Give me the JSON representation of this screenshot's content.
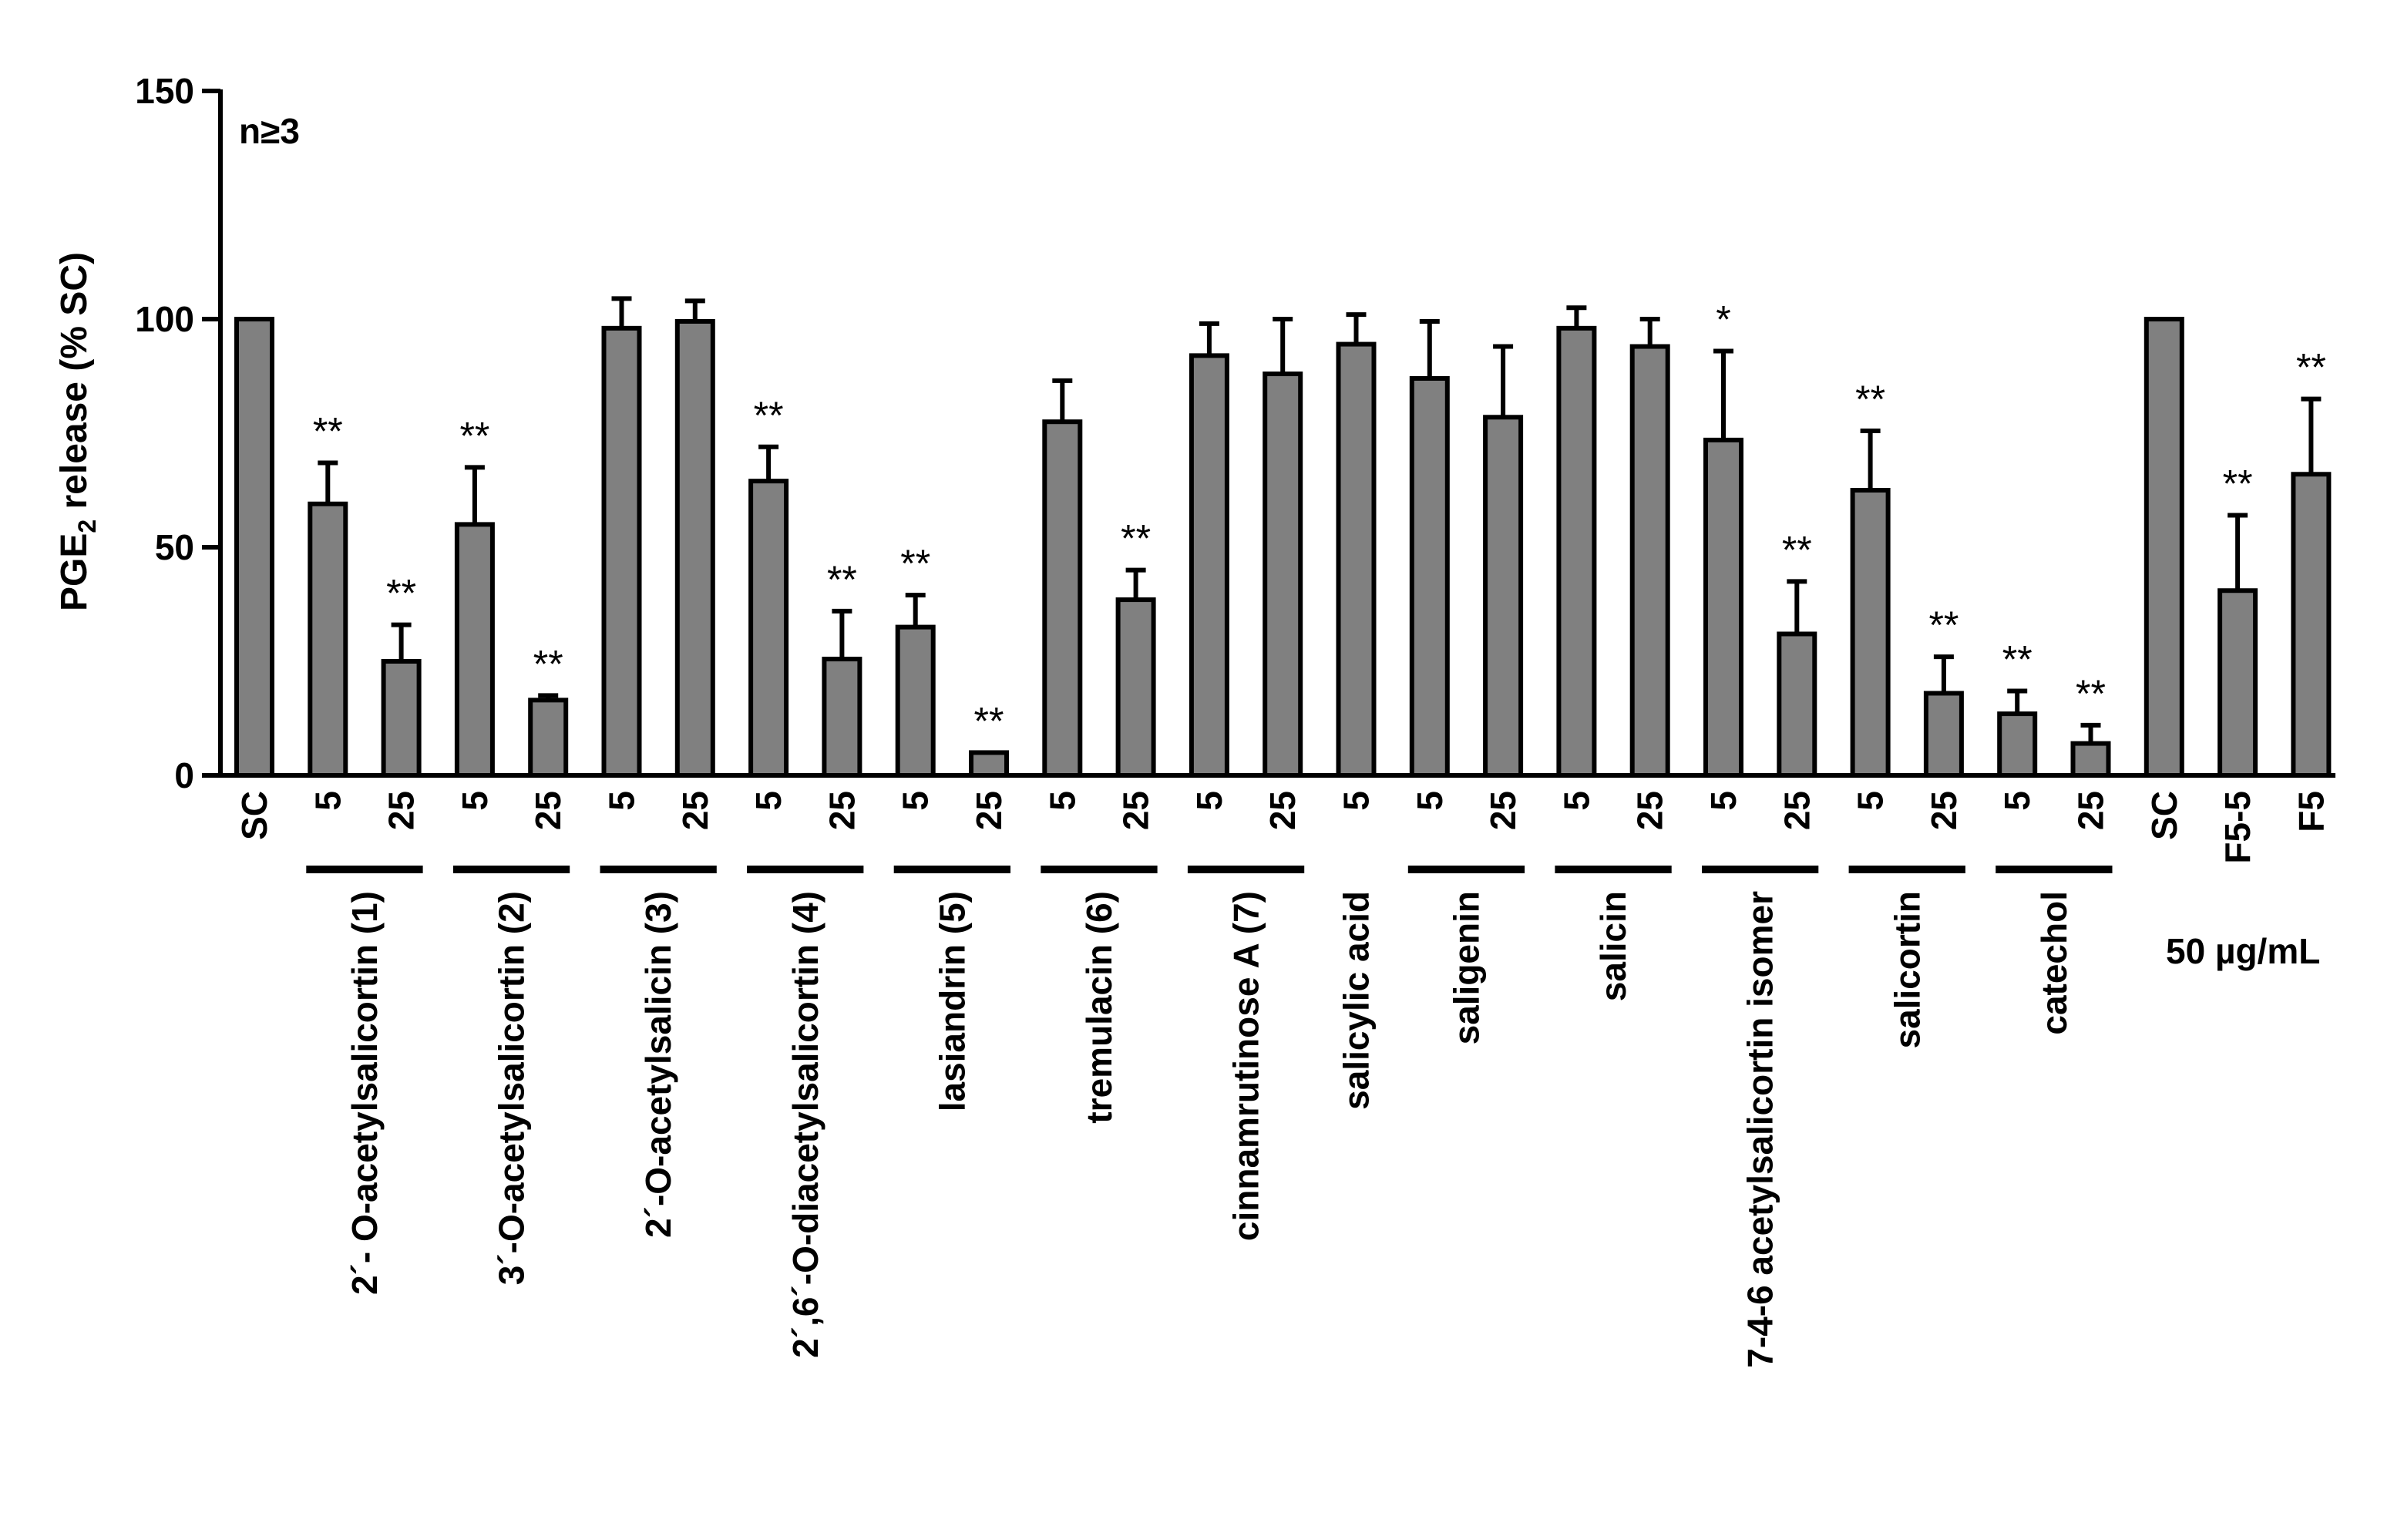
{
  "chart_data": {
    "type": "bar",
    "ylabel": "PGE",
    "ylabel_subscript": "2",
    "ylabel_tail": " release (% SC)",
    "annotation": "n≥3",
    "unit_label": "50 µg/mL",
    "ylim": [
      0,
      150
    ],
    "yticks": [
      0,
      50,
      100,
      150
    ],
    "grid": false,
    "bar_color": "#808080",
    "categories": [
      "SC",
      "5",
      "25",
      "5",
      "25",
      "5",
      "25",
      "5",
      "25",
      "5",
      "25",
      "5",
      "25",
      "5",
      "25",
      "5",
      "5",
      "25",
      "5",
      "25",
      "5",
      "25",
      "5",
      "25",
      "5",
      "25",
      "SC",
      "F5-5",
      "F5"
    ],
    "values": [
      100,
      59.5,
      25,
      55,
      16.5,
      98,
      99.5,
      64.5,
      25.5,
      32.5,
      5,
      77.5,
      38.5,
      92,
      88,
      94.5,
      87,
      78.5,
      98,
      94,
      73.5,
      31,
      62.5,
      18,
      13.5,
      7,
      100,
      40.5,
      66
    ],
    "errors": [
      0,
      9,
      8,
      12.5,
      1,
      6.5,
      4.5,
      7.5,
      10.5,
      7,
      0,
      9,
      6.5,
      7,
      12,
      6.5,
      12.5,
      15.5,
      4.5,
      6,
      19.5,
      11.5,
      13,
      8,
      5,
      4,
      0,
      16.5,
      16.5
    ],
    "significance": [
      "",
      "**",
      "**",
      "**",
      "**",
      "",
      "",
      "**",
      "**",
      "**",
      "**",
      "",
      "**",
      "",
      "",
      "",
      "",
      "",
      "",
      "",
      "*",
      "**",
      "**",
      "**",
      "**",
      "**",
      "",
      "**",
      "**"
    ],
    "groups": [
      {
        "label": "2´- O-acetylsalicortin (1)",
        "from": 1,
        "to": 2
      },
      {
        "label": "3´-O-acetylsalicortin (2)",
        "from": 3,
        "to": 4
      },
      {
        "label": "2´-O-acetylsalicin (3)",
        "from": 5,
        "to": 6
      },
      {
        "label": "2´,6´-O-diacetylsalicortin (4)",
        "from": 7,
        "to": 8
      },
      {
        "label": "lasiandrin (5)",
        "from": 9,
        "to": 10
      },
      {
        "label": "tremulacin (6)",
        "from": 11,
        "to": 12
      },
      {
        "label": "cinnamrutinose A (7)",
        "from": 13,
        "to": 14
      },
      {
        "label": "salicylic acid",
        "from": 15,
        "to": 15
      },
      {
        "label": "saligenin",
        "from": 16,
        "to": 17
      },
      {
        "label": "salicin",
        "from": 18,
        "to": 19
      },
      {
        "label": "7-4-6 acetylsalicortin isomer",
        "from": 20,
        "to": 21
      },
      {
        "label": "salicortin",
        "from": 22,
        "to": 23
      },
      {
        "label": "catechol",
        "from": 24,
        "to": 25
      }
    ]
  }
}
